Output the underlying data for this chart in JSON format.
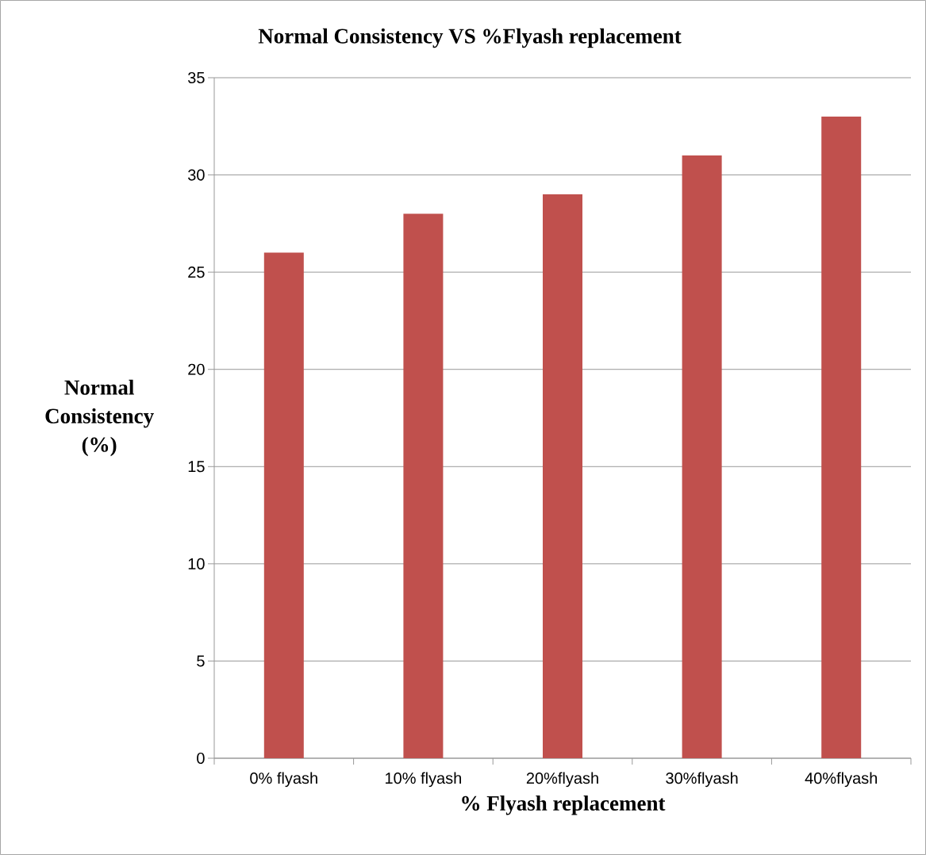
{
  "chart_data": {
    "type": "bar",
    "title": "Normal Consistency VS %Flyash replacement",
    "xlabel": "% Flyash replacement",
    "ylabel": "Normal Consistency (%)",
    "categories": [
      "0% flyash",
      "10% flyash",
      "20%flyash",
      "30%flyash",
      "40%flyash"
    ],
    "values": [
      26,
      28,
      29,
      31,
      33
    ],
    "color": "#c0504d",
    "ylim": [
      0,
      35
    ],
    "yticks": [
      0,
      5,
      10,
      15,
      20,
      25,
      30,
      35
    ],
    "grid": "y"
  }
}
